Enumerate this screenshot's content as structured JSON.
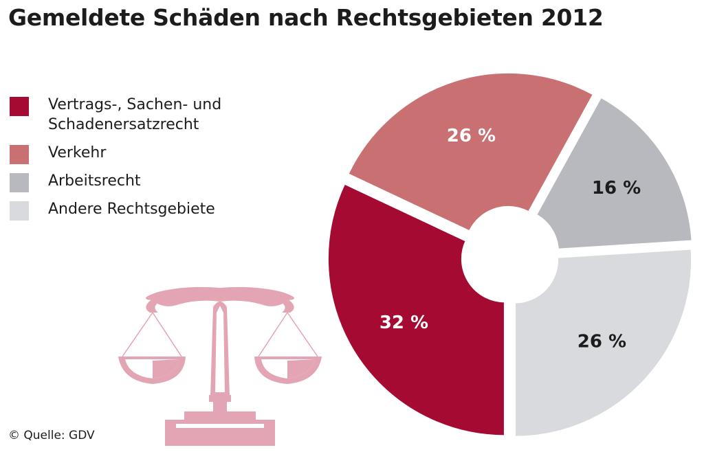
{
  "title": "Gemeldete Schäden nach Rechtsgebieten 2012",
  "source": "© Quelle: GDV",
  "chart_data": {
    "type": "pie",
    "title": "Gemeldete Schäden nach Rechtsgebieten 2012",
    "unit": "%",
    "slices": [
      {
        "name": "Vertrags-, Sachen- und\nSchadenersatzrecht",
        "value": 32,
        "label": "32 %",
        "color": "#a50a32",
        "label_color": "#ffffff"
      },
      {
        "name": "Verkehr",
        "value": 26,
        "label": "26 %",
        "color": "#c87072",
        "label_color": "#ffffff"
      },
      {
        "name": "Arbeitsrecht",
        "value": 16,
        "label": "16 %",
        "color": "#b8b9be",
        "label_color": "#1c1c1c"
      },
      {
        "name": "Andere Rechtsgebiete",
        "value": 26,
        "label": "26 %",
        "color": "#d9dadd",
        "label_color": "#1c1c1c"
      }
    ],
    "legend_position": "left"
  }
}
